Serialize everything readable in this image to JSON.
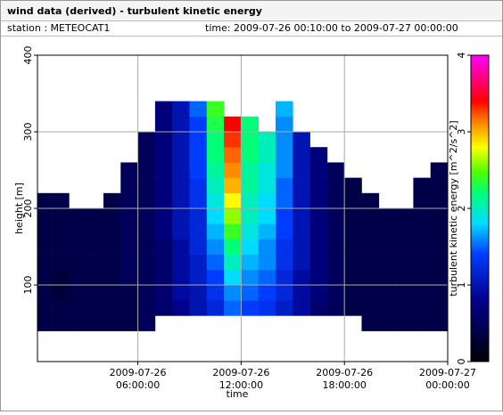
{
  "chart_data": {
    "type": "heatmap",
    "title": "wind data (derived) - turbulent kinetic energy",
    "station": "station : METEOCAT1",
    "time_range": "time: 2009-07-26 00:10:00 to 2009-07-27 00:00:00",
    "x_label": "time",
    "y_label": "height [m]",
    "colorbar_label": "turbulent kinetic energy [m^2/s^2]",
    "xlim": [
      "2009-07-26 00:10:00",
      "2009-07-27 00:00:00"
    ],
    "xticks": [
      {
        "value": "2009-07-26 06:00:00",
        "label": [
          "2009-07-26",
          "06:00:00"
        ]
      },
      {
        "value": "2009-07-26 12:00:00",
        "label": [
          "2009-07-26",
          "12:00:00"
        ]
      },
      {
        "value": "2009-07-26 18:00:00",
        "label": [
          "2009-07-26",
          "18:00:00"
        ]
      },
      {
        "value": "2009-07-27 00:00:00",
        "label": [
          "2009-07-27",
          "00:00:00"
        ]
      }
    ],
    "ylim": [
      0,
      400
    ],
    "yticks": [
      100,
      200,
      300,
      400
    ],
    "clim": [
      0,
      4
    ],
    "cticks": [
      0,
      1,
      2,
      3,
      4
    ],
    "grid": true,
    "x_bins": [
      "2009-07-26 00:10:00",
      "2009-07-26 01:00:00",
      "2009-07-26 02:00:00",
      "2009-07-26 03:00:00",
      "2009-07-26 04:00:00",
      "2009-07-26 05:00:00",
      "2009-07-26 06:00:00",
      "2009-07-26 07:00:00",
      "2009-07-26 08:00:00",
      "2009-07-26 09:00:00",
      "2009-07-26 10:00:00",
      "2009-07-26 11:00:00",
      "2009-07-26 12:00:00",
      "2009-07-26 13:00:00",
      "2009-07-26 14:00:00",
      "2009-07-26 15:00:00",
      "2009-07-26 16:00:00",
      "2009-07-26 17:00:00",
      "2009-07-26 18:00:00",
      "2009-07-26 19:00:00",
      "2009-07-26 20:00:00",
      "2009-07-26 21:00:00",
      "2009-07-26 22:00:00",
      "2009-07-26 23:00:00",
      "2009-07-27 00:00:00"
    ],
    "y_bins": [
      40,
      60,
      80,
      100,
      120,
      140,
      160,
      180,
      200,
      220,
      240,
      260,
      280,
      300,
      320,
      340
    ],
    "z": [
      [
        0.4,
        0.4,
        0.4,
        0.4,
        0.4,
        0.4,
        0.5,
        null,
        null,
        null,
        null,
        null,
        null,
        null,
        null,
        null,
        null,
        null,
        null,
        0.4,
        0.4,
        0.4,
        0.4,
        0.4
      ],
      [
        0.4,
        0.4,
        0.4,
        0.4,
        0.4,
        0.4,
        0.5,
        0.6,
        0.8,
        1.0,
        1.2,
        1.5,
        1.4,
        1.3,
        1.1,
        0.9,
        0.6,
        0.5,
        0.4,
        0.4,
        0.4,
        0.4,
        0.4,
        0.4
      ],
      [
        0.4,
        0.3,
        0.4,
        0.4,
        0.4,
        0.4,
        0.5,
        0.6,
        0.9,
        1.0,
        1.3,
        1.6,
        1.5,
        1.4,
        1.2,
        0.9,
        0.7,
        0.5,
        0.4,
        0.4,
        0.4,
        0.4,
        0.4,
        0.4
      ],
      [
        0.4,
        0.3,
        0.4,
        0.4,
        0.4,
        0.5,
        0.5,
        0.6,
        0.9,
        1.1,
        1.4,
        1.8,
        1.6,
        1.5,
        1.2,
        0.9,
        0.7,
        0.5,
        0.4,
        0.4,
        0.4,
        0.4,
        0.4,
        0.4
      ],
      [
        0.4,
        0.4,
        0.4,
        0.4,
        0.4,
        0.5,
        0.5,
        0.6,
        0.9,
        1.1,
        1.5,
        2.0,
        1.7,
        1.6,
        1.3,
        1.0,
        0.7,
        0.5,
        0.4,
        0.4,
        0.4,
        0.4,
        0.4,
        0.4
      ],
      [
        0.4,
        0.4,
        0.4,
        0.4,
        0.4,
        0.5,
        0.5,
        0.6,
        0.9,
        1.2,
        1.6,
        2.2,
        1.8,
        1.6,
        1.3,
        1.0,
        0.7,
        0.5,
        0.4,
        0.4,
        0.4,
        0.4,
        0.4,
        0.4
      ],
      [
        0.4,
        0.4,
        0.4,
        0.4,
        0.4,
        0.5,
        0.5,
        0.7,
        1.0,
        1.2,
        1.7,
        2.4,
        1.9,
        1.7,
        1.4,
        1.0,
        0.7,
        0.5,
        0.4,
        0.4,
        0.4,
        0.4,
        0.4,
        0.4
      ],
      [
        0.4,
        0.4,
        0.4,
        0.4,
        0.4,
        0.5,
        0.5,
        0.7,
        1.0,
        1.2,
        1.8,
        2.6,
        2.0,
        1.8,
        1.4,
        1.0,
        0.7,
        0.5,
        0.4,
        0.4,
        0.4,
        0.4,
        0.4,
        0.4
      ],
      [
        0.4,
        0.4,
        null,
        null,
        0.4,
        0.5,
        0.5,
        0.7,
        1.0,
        1.3,
        1.9,
        2.8,
        2.0,
        1.8,
        1.5,
        1.0,
        0.7,
        0.5,
        0.4,
        0.4,
        null,
        null,
        0.4,
        0.4
      ],
      [
        null,
        null,
        null,
        null,
        null,
        0.5,
        0.5,
        0.7,
        1.0,
        1.3,
        2.0,
        3.0,
        2.1,
        1.9,
        1.5,
        1.0,
        0.7,
        0.5,
        0.4,
        null,
        null,
        null,
        0.4,
        0.4
      ],
      [
        null,
        null,
        null,
        null,
        null,
        0.5,
        0.5,
        0.7,
        1.0,
        1.4,
        2.1,
        3.1,
        2.1,
        1.9,
        1.6,
        1.0,
        0.7,
        0.5,
        null,
        null,
        null,
        null,
        null,
        0.4
      ],
      [
        null,
        null,
        null,
        null,
        null,
        null,
        0.5,
        0.7,
        1.0,
        1.4,
        2.2,
        3.2,
        2.2,
        2.0,
        1.6,
        1.0,
        0.7,
        null,
        null,
        null,
        null,
        null,
        null,
        null
      ],
      [
        null,
        null,
        null,
        null,
        null,
        null,
        0.5,
        0.7,
        1.0,
        1.4,
        2.2,
        3.3,
        2.2,
        2.0,
        1.6,
        1.0,
        null,
        null,
        null,
        null,
        null,
        null,
        null,
        null
      ],
      [
        null,
        null,
        null,
        null,
        null,
        null,
        null,
        0.7,
        1.0,
        1.4,
        2.3,
        3.4,
        2.2,
        null,
        1.6,
        null,
        null,
        null,
        null,
        null,
        null,
        null,
        null,
        null
      ],
      [
        null,
        null,
        null,
        null,
        null,
        null,
        null,
        0.7,
        1.0,
        1.5,
        2.4,
        null,
        null,
        null,
        1.7,
        null,
        null,
        null,
        null,
        null,
        null,
        null,
        null,
        null
      ]
    ]
  }
}
